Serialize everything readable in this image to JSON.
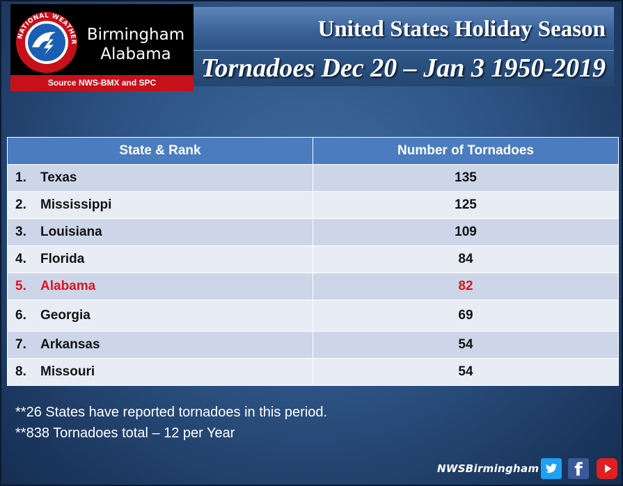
{
  "logo": {
    "city": "Birmingham",
    "state": "Alabama",
    "source": "Source NWS-BMX and SPC",
    "seal_text": "NATIONAL WEATHER SERVICE"
  },
  "titles": {
    "line1": "United States Holiday Season",
    "line2": "Tornadoes Dec 20 – Jan 3 1950-2019"
  },
  "table": {
    "headers": [
      "State & Rank",
      "Number of Tornadoes"
    ],
    "rows": [
      {
        "rank": "1.",
        "state": "Texas",
        "count": "135"
      },
      {
        "rank": "2.",
        "state": "Mississippi",
        "count": "125"
      },
      {
        "rank": "3.",
        "state": "Louisiana",
        "count": "109"
      },
      {
        "rank": "4.",
        "state": "Florida",
        "count": "84"
      },
      {
        "rank": "5.",
        "state": "Alabama",
        "count": "82"
      },
      {
        "rank": "6.",
        "state": "Georgia",
        "count": "69"
      },
      {
        "rank": "7.",
        "state": "Arkansas",
        "count": "54"
      },
      {
        "rank": "8.",
        "state": "Missouri",
        "count": "54"
      }
    ],
    "highlight_color": "#e0141e"
  },
  "notes": [
    "**26 States have reported tornadoes in this period.",
    "**838 Tornadoes total – 12 per Year"
  ],
  "footer": {
    "handle": "NWSBirmingham",
    "facebook_glyph": "f"
  },
  "social_icons": [
    "twitter-icon",
    "facebook-icon",
    "youtube-icon"
  ]
}
